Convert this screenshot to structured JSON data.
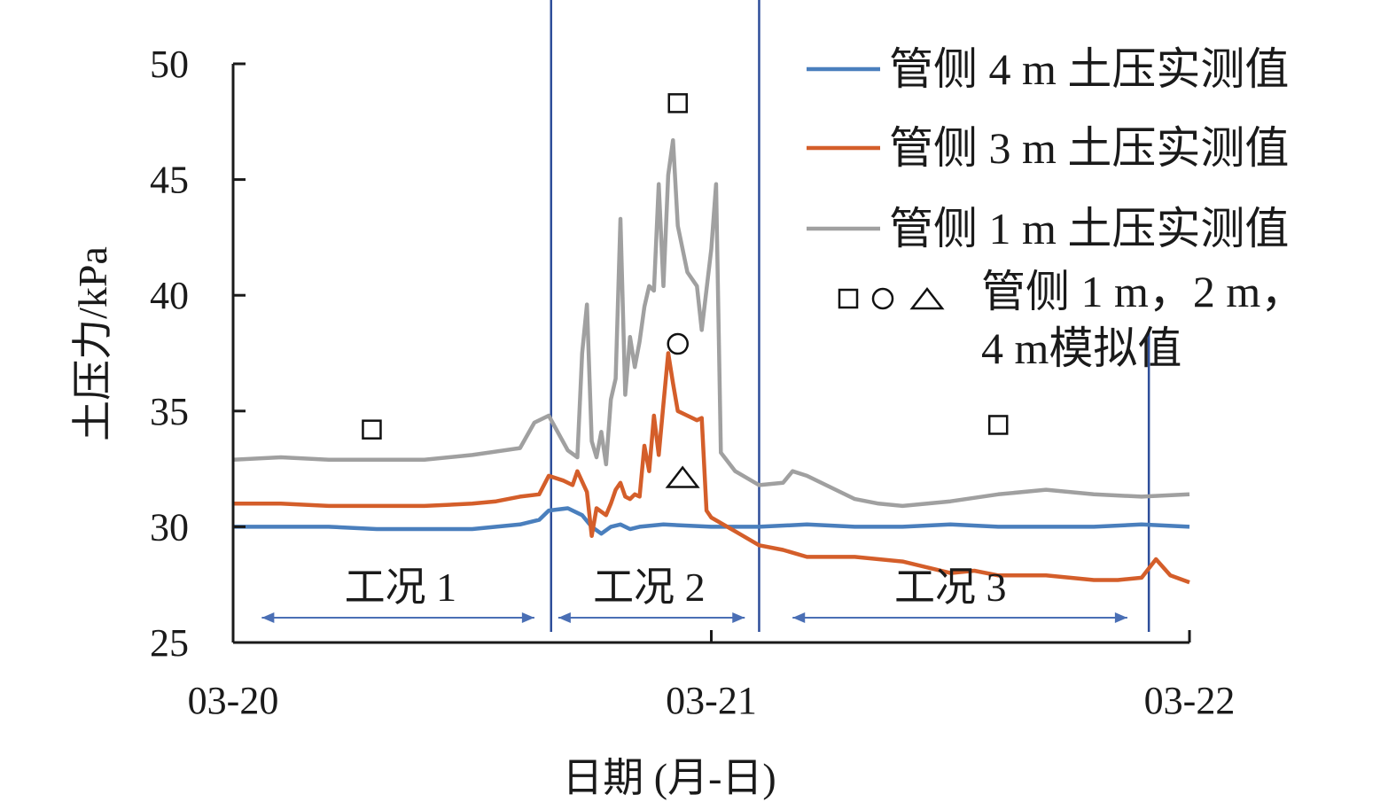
{
  "chart_data": {
    "type": "line",
    "xlabel": "日期 (月-日)",
    "ylabel": "土压力/kPa",
    "xlim": [
      0,
      2
    ],
    "ylim": [
      25,
      50
    ],
    "x_ticks": [
      {
        "value": 0,
        "label": "03-20"
      },
      {
        "value": 1,
        "label": "03-21"
      },
      {
        "value": 2,
        "label": "03-22"
      }
    ],
    "y_ticks": [
      25,
      30,
      35,
      40,
      45,
      50
    ],
    "grid": false,
    "legend_position": "top-right",
    "colors": {
      "blue": "#4a7fbd",
      "orange": "#d45e2a",
      "gray": "#a0a0a0",
      "divider": "#2e4e9a",
      "arrow": "#4a6fb5"
    },
    "series": [
      {
        "name": "管侧 4 m 土压实测值",
        "color": "#4a7fbd",
        "points": [
          [
            0,
            30.0
          ],
          [
            0.05,
            30.0
          ],
          [
            0.1,
            30.0
          ],
          [
            0.2,
            30.0
          ],
          [
            0.3,
            29.9
          ],
          [
            0.4,
            29.9
          ],
          [
            0.5,
            29.9
          ],
          [
            0.55,
            30.0
          ],
          [
            0.6,
            30.1
          ],
          [
            0.64,
            30.3
          ],
          [
            0.66,
            30.7
          ],
          [
            0.7,
            30.8
          ],
          [
            0.73,
            30.5
          ],
          [
            0.75,
            30.0
          ],
          [
            0.77,
            29.7
          ],
          [
            0.79,
            30.0
          ],
          [
            0.81,
            30.1
          ],
          [
            0.83,
            29.9
          ],
          [
            0.85,
            30.0
          ],
          [
            0.9,
            30.1
          ],
          [
            1.0,
            30.0
          ],
          [
            1.1,
            30.0
          ],
          [
            1.2,
            30.1
          ],
          [
            1.3,
            30.0
          ],
          [
            1.4,
            30.0
          ],
          [
            1.5,
            30.1
          ],
          [
            1.6,
            30.0
          ],
          [
            1.7,
            30.0
          ],
          [
            1.8,
            30.0
          ],
          [
            1.9,
            30.1
          ],
          [
            2.0,
            30.0
          ]
        ]
      },
      {
        "name": "管侧 3 m 土压实测值",
        "color": "#d45e2a",
        "points": [
          [
            0,
            31.0
          ],
          [
            0.1,
            31.0
          ],
          [
            0.2,
            30.9
          ],
          [
            0.3,
            30.9
          ],
          [
            0.4,
            30.9
          ],
          [
            0.5,
            31.0
          ],
          [
            0.55,
            31.1
          ],
          [
            0.6,
            31.3
          ],
          [
            0.64,
            31.4
          ],
          [
            0.66,
            32.2
          ],
          [
            0.69,
            32.0
          ],
          [
            0.71,
            31.8
          ],
          [
            0.72,
            32.4
          ],
          [
            0.74,
            31.5
          ],
          [
            0.75,
            29.6
          ],
          [
            0.76,
            30.8
          ],
          [
            0.78,
            30.5
          ],
          [
            0.79,
            31.0
          ],
          [
            0.8,
            31.6
          ],
          [
            0.81,
            31.9
          ],
          [
            0.82,
            31.3
          ],
          [
            0.83,
            31.2
          ],
          [
            0.84,
            31.4
          ],
          [
            0.85,
            31.3
          ],
          [
            0.86,
            33.5
          ],
          [
            0.87,
            32.4
          ],
          [
            0.88,
            34.8
          ],
          [
            0.89,
            33.1
          ],
          [
            0.9,
            35.3
          ],
          [
            0.91,
            37.5
          ],
          [
            0.92,
            36.2
          ],
          [
            0.93,
            35.0
          ],
          [
            0.95,
            34.8
          ],
          [
            0.97,
            34.6
          ],
          [
            0.98,
            34.7
          ],
          [
            0.99,
            30.7
          ],
          [
            1.0,
            30.4
          ],
          [
            1.05,
            29.8
          ],
          [
            1.1,
            29.2
          ],
          [
            1.15,
            29.0
          ],
          [
            1.2,
            28.7
          ],
          [
            1.3,
            28.7
          ],
          [
            1.4,
            28.5
          ],
          [
            1.5,
            28.0
          ],
          [
            1.55,
            28.1
          ],
          [
            1.6,
            27.9
          ],
          [
            1.7,
            27.9
          ],
          [
            1.8,
            27.7
          ],
          [
            1.85,
            27.7
          ],
          [
            1.9,
            27.8
          ],
          [
            1.93,
            28.6
          ],
          [
            1.96,
            27.9
          ],
          [
            2.0,
            27.6
          ]
        ]
      },
      {
        "name": "管侧 1 m 土压实测值",
        "color": "#a0a0a0",
        "points": [
          [
            0,
            32.9
          ],
          [
            0.1,
            33.0
          ],
          [
            0.2,
            32.9
          ],
          [
            0.3,
            32.9
          ],
          [
            0.4,
            32.9
          ],
          [
            0.5,
            33.1
          ],
          [
            0.6,
            33.4
          ],
          [
            0.63,
            34.5
          ],
          [
            0.66,
            34.8
          ],
          [
            0.7,
            33.3
          ],
          [
            0.72,
            33.0
          ],
          [
            0.73,
            37.5
          ],
          [
            0.74,
            39.6
          ],
          [
            0.75,
            33.7
          ],
          [
            0.76,
            33.0
          ],
          [
            0.77,
            34.1
          ],
          [
            0.78,
            32.7
          ],
          [
            0.79,
            35.5
          ],
          [
            0.8,
            36.4
          ],
          [
            0.81,
            43.3
          ],
          [
            0.82,
            35.7
          ],
          [
            0.83,
            38.2
          ],
          [
            0.84,
            36.9
          ],
          [
            0.85,
            38.0
          ],
          [
            0.86,
            39.5
          ],
          [
            0.87,
            40.4
          ],
          [
            0.88,
            40.2
          ],
          [
            0.89,
            44.8
          ],
          [
            0.9,
            40.4
          ],
          [
            0.91,
            45.2
          ],
          [
            0.92,
            46.7
          ],
          [
            0.93,
            43.0
          ],
          [
            0.95,
            41.0
          ],
          [
            0.97,
            40.4
          ],
          [
            0.98,
            38.5
          ],
          [
            1.0,
            42.0
          ],
          [
            1.01,
            44.8
          ],
          [
            1.02,
            33.2
          ],
          [
            1.05,
            32.4
          ],
          [
            1.1,
            31.8
          ],
          [
            1.15,
            31.9
          ],
          [
            1.17,
            32.4
          ],
          [
            1.2,
            32.2
          ],
          [
            1.3,
            31.2
          ],
          [
            1.35,
            31.0
          ],
          [
            1.4,
            30.9
          ],
          [
            1.5,
            31.1
          ],
          [
            1.6,
            31.4
          ],
          [
            1.7,
            31.6
          ],
          [
            1.8,
            31.4
          ],
          [
            1.9,
            31.3
          ],
          [
            2.0,
            31.4
          ]
        ]
      }
    ],
    "simulated_markers": [
      {
        "shape": "square",
        "x": 0.29,
        "y": 34.2
      },
      {
        "shape": "square",
        "x": 0.93,
        "y": 48.3
      },
      {
        "shape": "circle",
        "x": 0.93,
        "y": 37.9
      },
      {
        "shape": "triangle",
        "x": 0.94,
        "y": 32.1
      },
      {
        "shape": "square",
        "x": 1.6,
        "y": 34.4
      }
    ],
    "phase_dividers": [
      0.665,
      1.1,
      1.915
    ],
    "phases": [
      {
        "label": "工况 1",
        "from": 0.06,
        "to": 0.63,
        "label_x": 0.35
      },
      {
        "label": "工况 2",
        "from": 0.68,
        "to": 1.07,
        "label_x": 0.87
      },
      {
        "label": "工况 3",
        "from": 1.17,
        "to": 1.87,
        "label_x": 1.5
      }
    ],
    "legend": {
      "line_entries": [
        "管侧 4 m 土压实测值",
        "管侧 3 m 土压实测值",
        "管侧 1 m 土压实测值"
      ],
      "marker_entry_line1": "管侧 1 m，2 m，",
      "marker_entry_line2": "4 m模拟值"
    }
  }
}
